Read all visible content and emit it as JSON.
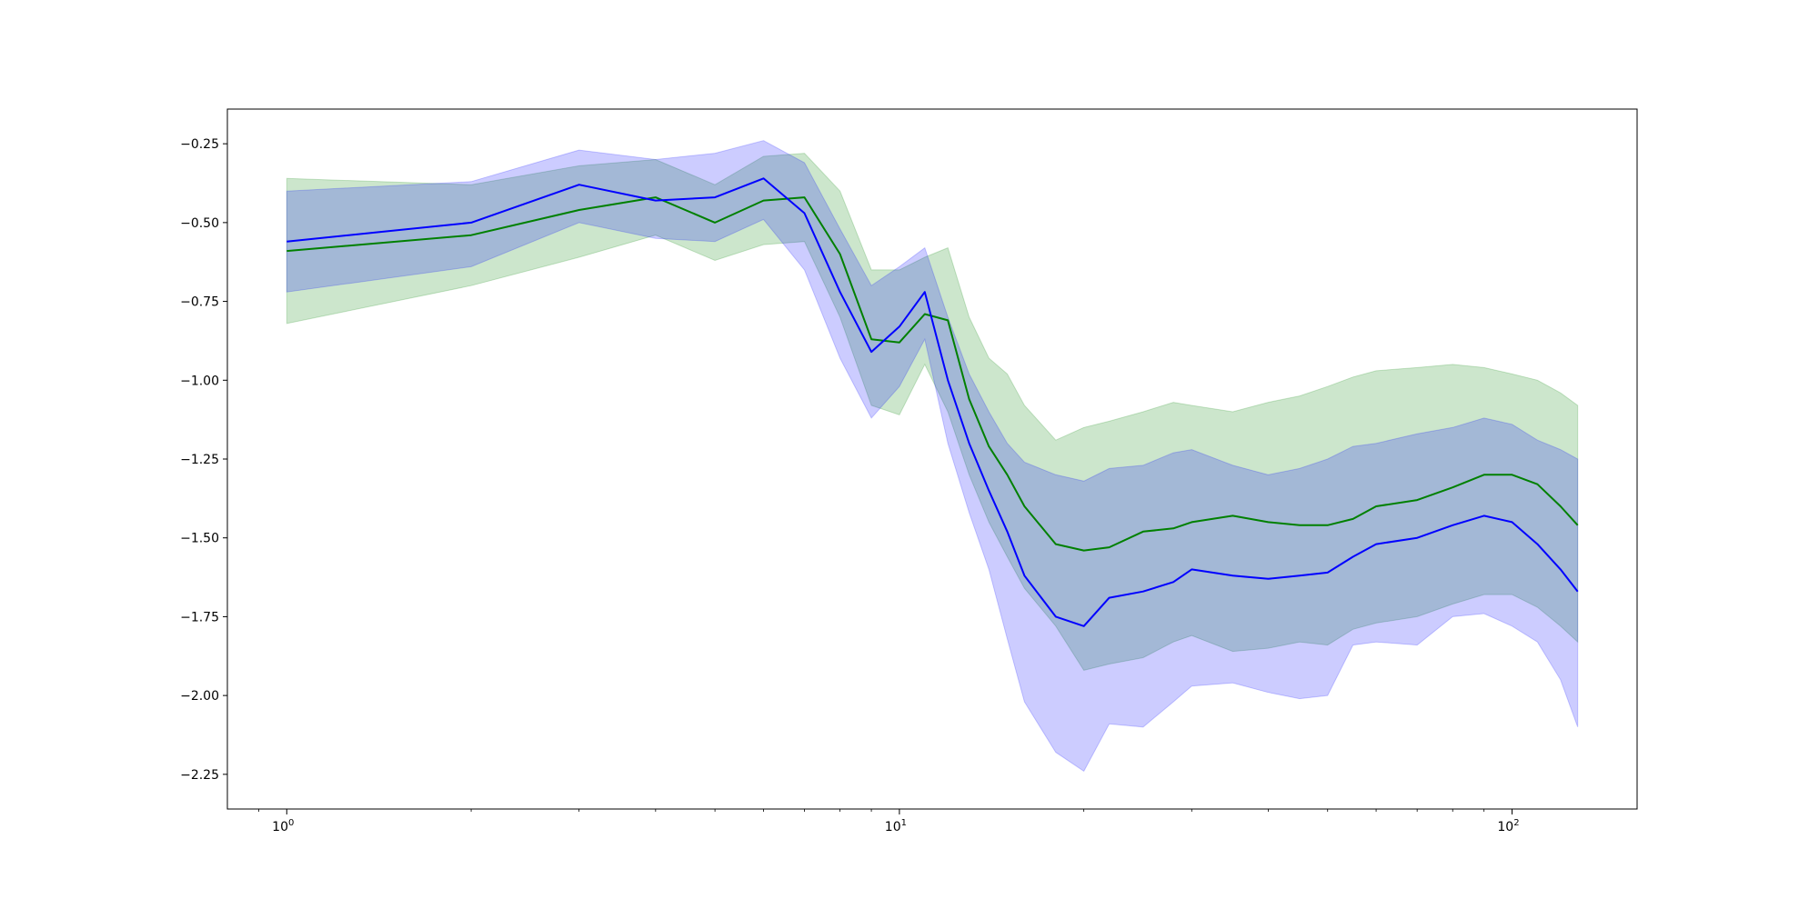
{
  "chart_data": {
    "type": "line",
    "title": "",
    "xlabel": "",
    "ylabel": "",
    "xscale": "log",
    "xlim": [
      0.8,
      160
    ],
    "ylim": [
      -2.36,
      -0.14
    ],
    "grid": false,
    "x_ticks": [
      {
        "value": 1,
        "base": "10",
        "exp": "0"
      },
      {
        "value": 10,
        "base": "10",
        "exp": "1"
      },
      {
        "value": 100,
        "base": "10",
        "exp": "2"
      }
    ],
    "y_ticks": [
      {
        "value": -0.25,
        "label": "−0.25"
      },
      {
        "value": -0.5,
        "label": "−0.50"
      },
      {
        "value": -0.75,
        "label": "−0.75"
      },
      {
        "value": -1.0,
        "label": "−1.00"
      },
      {
        "value": -1.25,
        "label": "−1.25"
      },
      {
        "value": -1.5,
        "label": "−1.50"
      },
      {
        "value": -1.75,
        "label": "−1.75"
      },
      {
        "value": -2.0,
        "label": "−2.00"
      },
      {
        "value": -2.25,
        "label": "−2.25"
      }
    ],
    "x": [
      1,
      2,
      3,
      4,
      5,
      6,
      7,
      8,
      9,
      10,
      11,
      12,
      13,
      14,
      15,
      16,
      18,
      20,
      22,
      25,
      28,
      30,
      35,
      40,
      45,
      50,
      55,
      60,
      70,
      80,
      90,
      100,
      110,
      120,
      128
    ],
    "series": [
      {
        "color": "#0000ff",
        "band_color": "#0000ff",
        "band_alpha": 0.2,
        "values": [
          -0.56,
          -0.5,
          -0.38,
          -0.43,
          -0.42,
          -0.36,
          -0.47,
          -0.72,
          -0.91,
          -0.83,
          -0.72,
          -1.0,
          -1.2,
          -1.35,
          -1.48,
          -1.62,
          -1.75,
          -1.78,
          -1.69,
          -1.67,
          -1.64,
          -1.6,
          -1.62,
          -1.63,
          -1.62,
          -1.61,
          -1.56,
          -1.52,
          -1.5,
          -1.46,
          -1.43,
          -1.45,
          -1.52,
          -1.6,
          -1.67
        ],
        "lower": [
          -0.72,
          -0.64,
          -0.5,
          -0.55,
          -0.56,
          -0.49,
          -0.65,
          -0.93,
          -1.12,
          -1.02,
          -0.87,
          -1.2,
          -1.42,
          -1.6,
          -1.82,
          -2.02,
          -2.18,
          -2.24,
          -2.09,
          -2.1,
          -2.02,
          -1.97,
          -1.96,
          -1.99,
          -2.01,
          -2.0,
          -1.84,
          -1.83,
          -1.84,
          -1.75,
          -1.74,
          -1.78,
          -1.83,
          -1.95,
          -2.1
        ],
        "upper": [
          -0.4,
          -0.37,
          -0.27,
          -0.3,
          -0.28,
          -0.24,
          -0.31,
          -0.52,
          -0.7,
          -0.64,
          -0.58,
          -0.8,
          -0.98,
          -1.1,
          -1.2,
          -1.26,
          -1.3,
          -1.32,
          -1.28,
          -1.27,
          -1.23,
          -1.22,
          -1.27,
          -1.3,
          -1.28,
          -1.25,
          -1.21,
          -1.2,
          -1.17,
          -1.15,
          -1.12,
          -1.14,
          -1.19,
          -1.22,
          -1.25
        ]
      },
      {
        "color": "#008000",
        "band_color": "#008000",
        "band_alpha": 0.2,
        "values": [
          -0.59,
          -0.54,
          -0.46,
          -0.42,
          -0.5,
          -0.43,
          -0.42,
          -0.6,
          -0.87,
          -0.88,
          -0.79,
          -0.81,
          -1.06,
          -1.21,
          -1.3,
          -1.4,
          -1.52,
          -1.54,
          -1.53,
          -1.48,
          -1.47,
          -1.45,
          -1.43,
          -1.45,
          -1.46,
          -1.46,
          -1.44,
          -1.4,
          -1.38,
          -1.34,
          -1.3,
          -1.3,
          -1.33,
          -1.4,
          -1.46
        ],
        "lower": [
          -0.82,
          -0.7,
          -0.61,
          -0.54,
          -0.62,
          -0.57,
          -0.56,
          -0.8,
          -1.08,
          -1.11,
          -0.95,
          -1.1,
          -1.3,
          -1.45,
          -1.56,
          -1.66,
          -1.78,
          -1.92,
          -1.9,
          -1.88,
          -1.83,
          -1.81,
          -1.86,
          -1.85,
          -1.83,
          -1.84,
          -1.79,
          -1.77,
          -1.75,
          -1.71,
          -1.68,
          -1.68,
          -1.72,
          -1.78,
          -1.83
        ],
        "upper": [
          -0.36,
          -0.38,
          -0.32,
          -0.3,
          -0.38,
          -0.29,
          -0.28,
          -0.4,
          -0.65,
          -0.65,
          -0.61,
          -0.58,
          -0.8,
          -0.93,
          -0.98,
          -1.08,
          -1.19,
          -1.15,
          -1.13,
          -1.1,
          -1.07,
          -1.08,
          -1.1,
          -1.07,
          -1.05,
          -1.02,
          -0.99,
          -0.97,
          -0.96,
          -0.95,
          -0.96,
          -0.98,
          -1.0,
          -1.04,
          -1.08
        ]
      }
    ]
  }
}
